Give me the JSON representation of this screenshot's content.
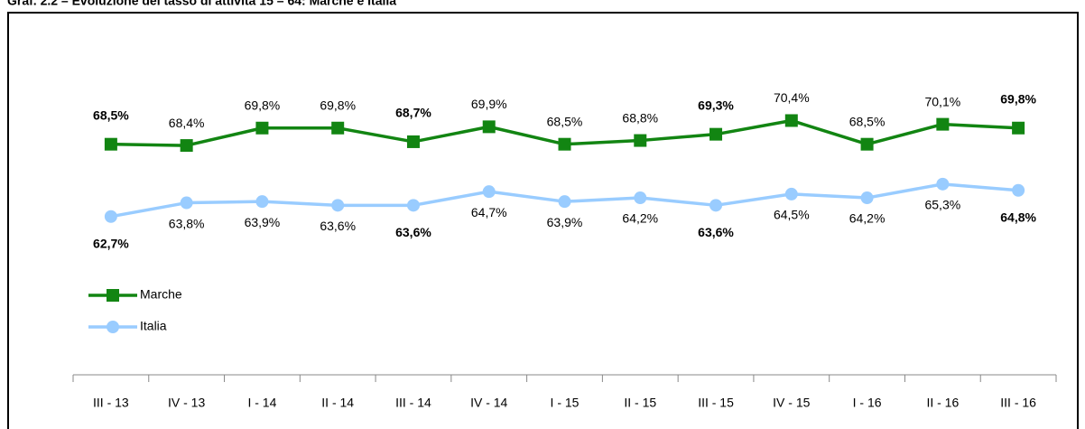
{
  "chart_data": {
    "type": "line",
    "title": "Graf. 2.2 – Evoluzione del tasso di attività 15 – 64: Marche e Italia",
    "categories": [
      "III - 13",
      "IV - 13",
      "I - 14",
      "II - 14",
      "III - 14",
      "IV - 14",
      "I - 15",
      "II - 15",
      "III - 15",
      "IV - 15",
      "I - 16",
      "II - 16",
      "III - 16"
    ],
    "series": [
      {
        "name": "Marche",
        "color": "#128512",
        "marker": "square",
        "label_position": "above",
        "values": [
          68.5,
          68.4,
          69.8,
          69.8,
          68.7,
          69.9,
          68.5,
          68.8,
          69.3,
          70.4,
          68.5,
          70.1,
          69.8
        ],
        "value_labels": [
          "68,5%",
          "68,4%",
          "69,8%",
          "69,8%",
          "68,7%",
          "69,9%",
          "68,5%",
          "68,8%",
          "69,3%",
          "70,4%",
          "68,5%",
          "70,1%",
          "69,8%"
        ],
        "label_bold": [
          true,
          false,
          false,
          false,
          true,
          false,
          false,
          false,
          true,
          false,
          false,
          false,
          true
        ]
      },
      {
        "name": "Italia",
        "color": "#99ccff",
        "marker": "circle",
        "label_position": "below",
        "values": [
          62.7,
          63.8,
          63.9,
          63.6,
          63.6,
          64.7,
          63.9,
          64.2,
          63.6,
          64.5,
          64.2,
          65.3,
          64.8
        ],
        "value_labels": [
          "62,7%",
          "63,8%",
          "63,9%",
          "63,6%",
          "63,6%",
          "64,7%",
          "63,9%",
          "64,2%",
          "63,6%",
          "64,5%",
          "64,2%",
          "65,3%",
          "64,8%"
        ],
        "label_bold": [
          true,
          false,
          false,
          false,
          true,
          false,
          false,
          false,
          true,
          false,
          false,
          false,
          true
        ]
      }
    ],
    "ylim": [
      50,
      75
    ],
    "legend": "left"
  }
}
